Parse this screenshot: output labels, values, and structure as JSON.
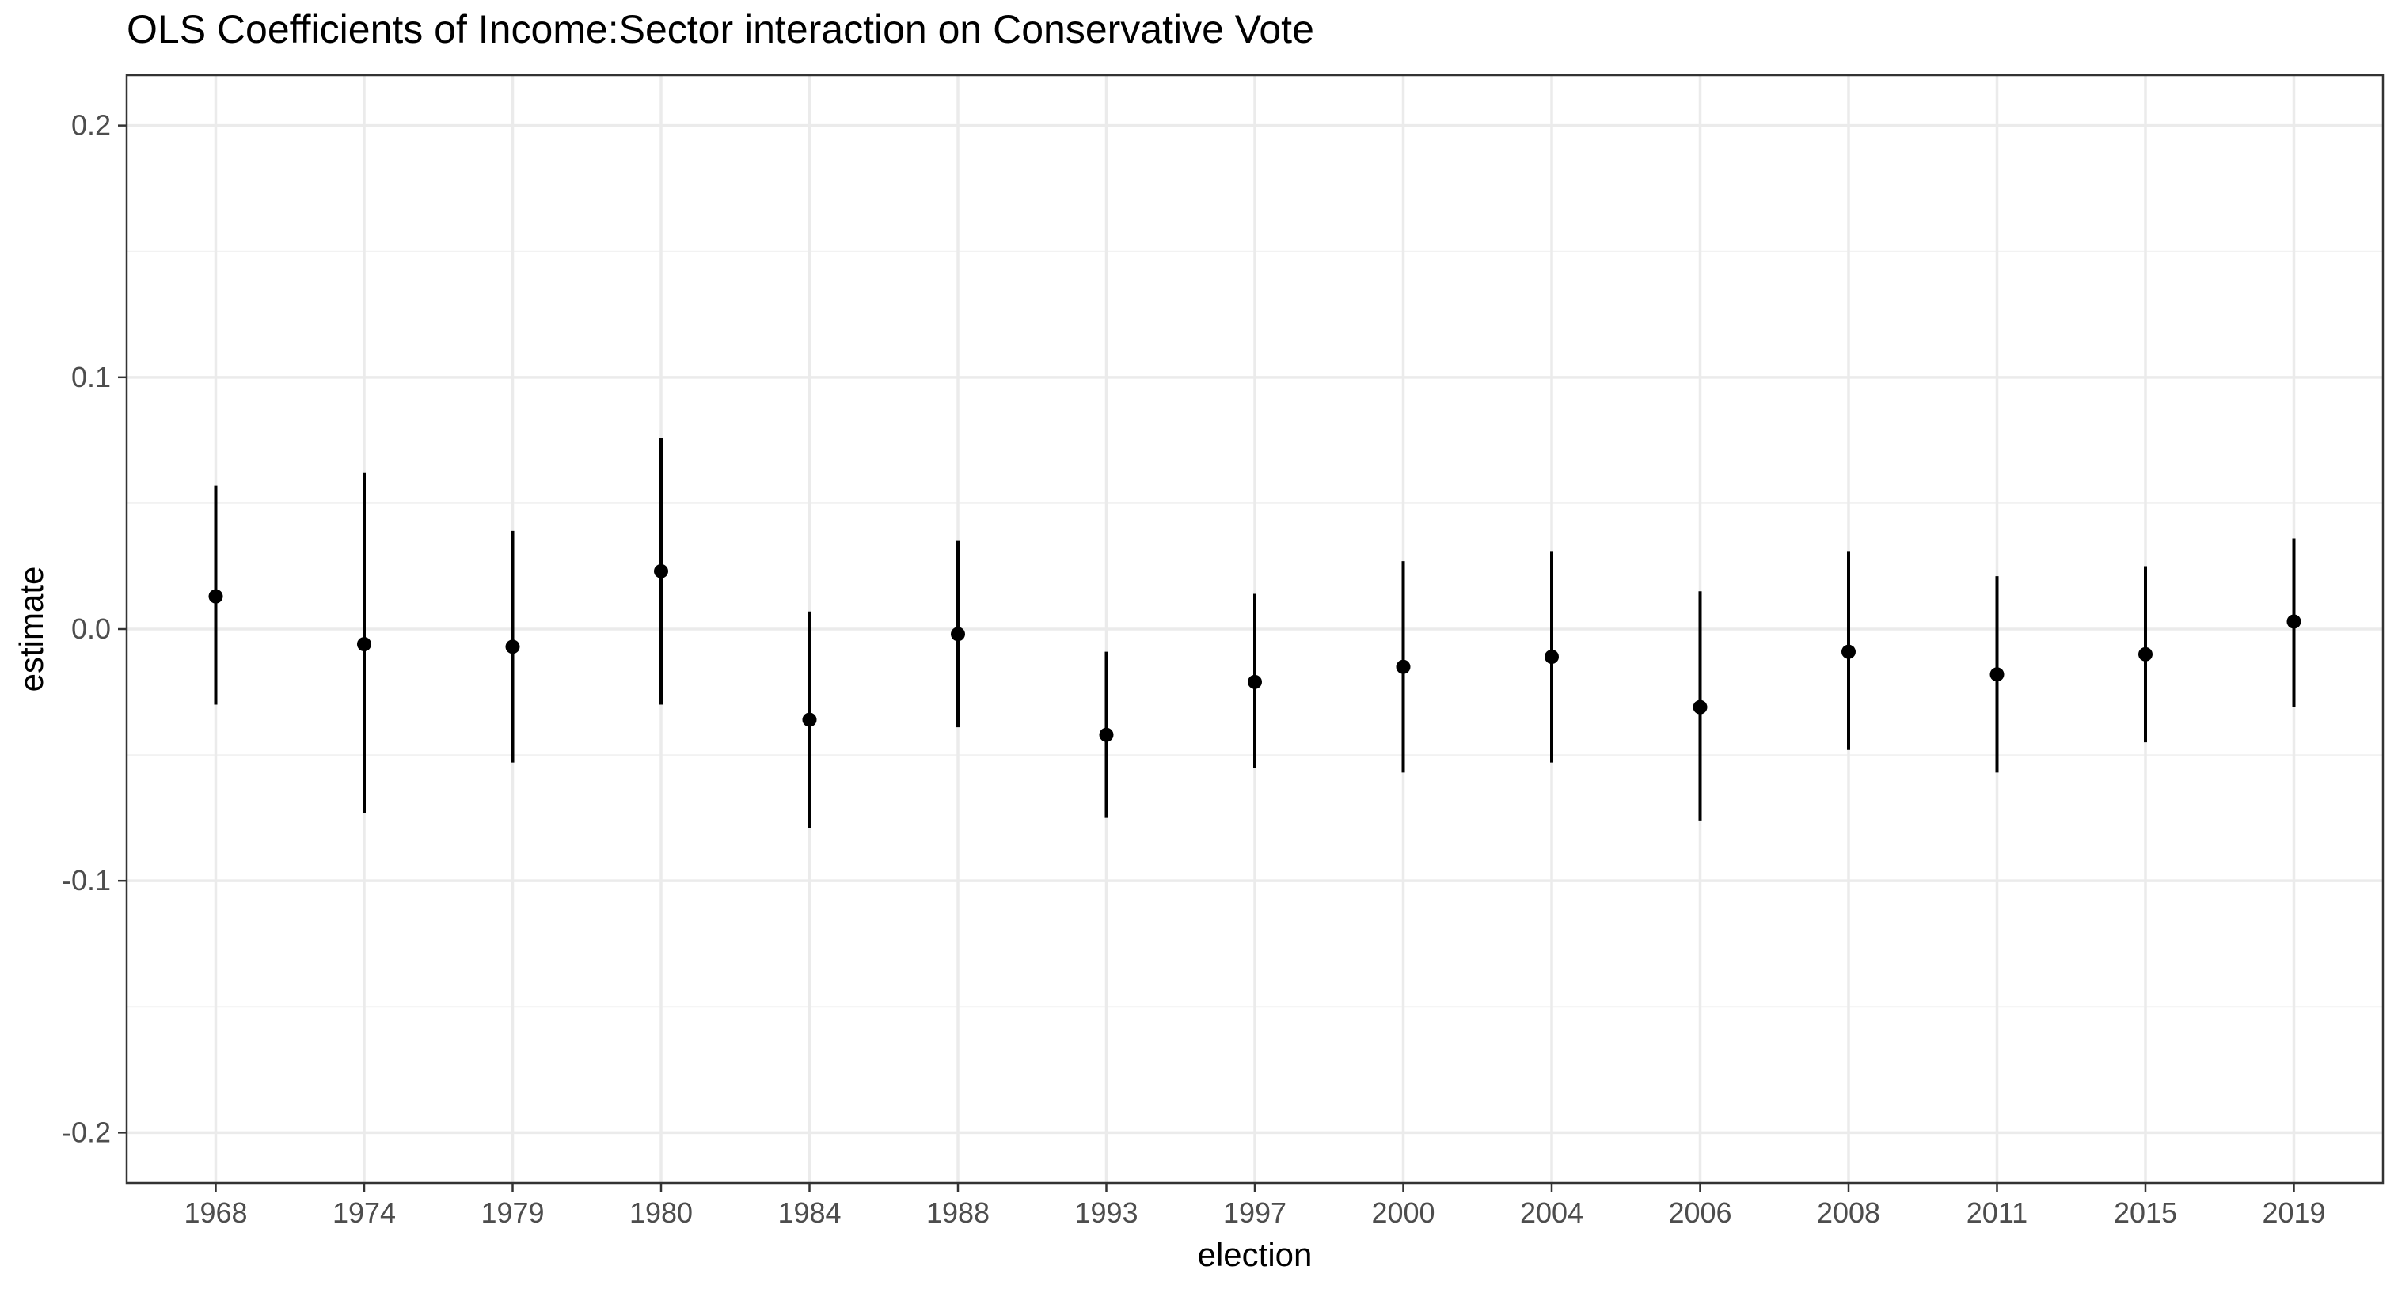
{
  "chart_data": {
    "type": "scatter",
    "title": "OLS Coefficients of Income:Sector interaction on Conservative Vote",
    "xlabel": "election",
    "ylabel": "estimate",
    "ylim": [
      -0.2,
      0.2
    ],
    "y_ticks": [
      -0.2,
      -0.1,
      0.0,
      0.1,
      0.2
    ],
    "y_tick_labels": [
      "-0.2",
      "-0.1",
      "0.0",
      "0.1",
      "0.2"
    ],
    "grid": true,
    "categories": [
      "1968",
      "1974",
      "1979",
      "1980",
      "1984",
      "1988",
      "1993",
      "1997",
      "2000",
      "2004",
      "2006",
      "2008",
      "2011",
      "2015",
      "2019"
    ],
    "series": [
      {
        "estimate": [
          0.013,
          -0.006,
          -0.007,
          0.023,
          -0.036,
          -0.002,
          -0.042,
          -0.021,
          -0.015,
          -0.011,
          -0.031,
          -0.009,
          -0.018,
          -0.01,
          0.003
        ],
        "lower": [
          -0.03,
          -0.073,
          -0.053,
          -0.03,
          -0.079,
          -0.039,
          -0.075,
          -0.055,
          -0.057,
          -0.053,
          -0.076,
          -0.048,
          -0.057,
          -0.045,
          -0.031
        ],
        "upper": [
          0.057,
          0.062,
          0.039,
          0.076,
          0.007,
          0.035,
          -0.009,
          0.014,
          0.027,
          0.031,
          0.015,
          0.031,
          0.021,
          0.025,
          0.036
        ]
      }
    ],
    "colors": {
      "point": "#000000",
      "panel_border": "#333333",
      "grid_major": "#ebebeb",
      "grid_minor": "#f2f2f2",
      "tick_text": "#4d4d4d"
    }
  }
}
